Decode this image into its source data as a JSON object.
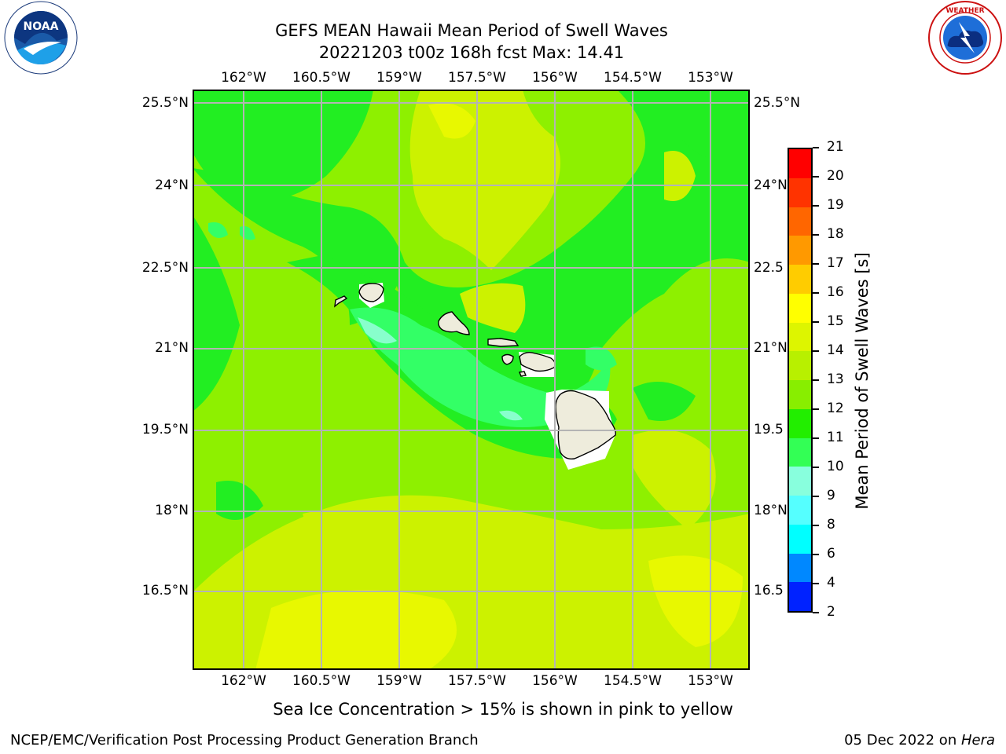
{
  "title": {
    "line1": "GEFS MEAN Hawaii Mean Period of Swell Waves",
    "line2": "20221203 t00z 168h fcst   Max: 14.41"
  },
  "logos": {
    "noaa": {
      "text": "NOAA",
      "ring_text": "NATIONAL OCEANIC AND ATMOSPHERIC ADMINISTRATION · U.S. DEPARTMENT OF COMMERCE"
    },
    "nws": {
      "ring_text": "NATIONAL WEATHER SERVICE"
    }
  },
  "map": {
    "lon_labels": [
      "162°W",
      "160.5°W",
      "159°W",
      "157.5°W",
      "156°W",
      "154.5°W",
      "153°W"
    ],
    "lat_labels": [
      "25.5°N",
      "24°N",
      "22.5°N",
      "21°N",
      "19.5°N",
      "18°N",
      "16.5°N"
    ],
    "lat_labels_right": [
      "25.5°N",
      "24°N",
      "22.5",
      "21°N",
      "19.5",
      "18°N",
      "16.5"
    ],
    "field_colors": {
      "green_11_12": "#22ee22",
      "lime_12_13": "#8ef000",
      "yellowgreen_13_14": "#ccf200",
      "yellow_14_15": "#e8f800",
      "teal_10_11": "#33ff66",
      "aqua_9_10": "#88ffcc",
      "land": "#eeecdc"
    }
  },
  "colorbar": {
    "label": "Mean Period of Swell Waves [s]",
    "ticks": [
      "21",
      "20",
      "19",
      "18",
      "17",
      "16",
      "15",
      "14",
      "13",
      "12",
      "11",
      "10",
      "9",
      "8",
      "6",
      "4",
      "2"
    ],
    "colors": [
      "#ff0000",
      "#ff3300",
      "#ff6600",
      "#ff9900",
      "#ffcc00",
      "#ffff00",
      "#ddf500",
      "#b8f000",
      "#88ee00",
      "#22ee00",
      "#33ff55",
      "#88ffdd",
      "#55ffff",
      "#00ffff",
      "#0088ff",
      "#0022ff"
    ]
  },
  "subtitle": "Sea Ice Concentration > 15% is shown in pink to yellow",
  "footer": {
    "left": "NCEP/EMC/Verification Post Processing Product Generation Branch",
    "right_prefix": "05 Dec 2022 on ",
    "right_host": "Hera"
  }
}
